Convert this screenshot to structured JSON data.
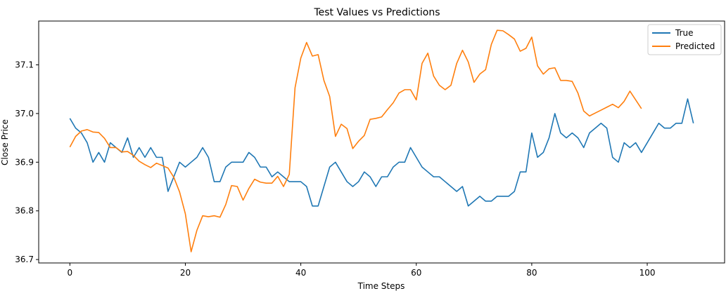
{
  "chart_data": {
    "type": "line",
    "title": "Test Values vs Predictions",
    "xlabel": "Time Steps",
    "ylabel": "Close Price",
    "xlim": [
      -5.4,
      113.4
    ],
    "ylim": [
      36.693,
      37.19
    ],
    "xticks": [
      0,
      20,
      40,
      60,
      80,
      100
    ],
    "yticks": [
      36.7,
      36.8,
      36.9,
      37.0,
      37.1
    ],
    "ytick_labels": [
      "36.7",
      "36.8",
      "36.9",
      "37.0",
      "37.1"
    ],
    "grid": false,
    "legend_position": "top-right",
    "series": [
      {
        "name": "True",
        "color": "#1f77b4",
        "values": [
          36.99,
          36.97,
          36.96,
          36.94,
          36.9,
          36.92,
          36.9,
          36.94,
          36.93,
          36.92,
          36.95,
          36.91,
          36.93,
          36.91,
          36.93,
          36.91,
          36.91,
          36.84,
          36.87,
          36.9,
          36.89,
          36.9,
          36.91,
          36.93,
          36.91,
          36.86,
          36.86,
          36.89,
          36.9,
          36.9,
          36.9,
          36.92,
          36.91,
          36.89,
          36.89,
          36.87,
          36.88,
          36.87,
          36.86,
          36.86,
          36.86,
          36.85,
          36.81,
          36.81,
          36.85,
          36.89,
          36.9,
          36.88,
          36.86,
          36.85,
          36.86,
          36.88,
          36.87,
          36.85,
          36.87,
          36.87,
          36.89,
          36.9,
          36.9,
          36.93,
          36.91,
          36.89,
          36.88,
          36.87,
          36.87,
          36.86,
          36.85,
          36.84,
          36.85,
          36.81,
          36.82,
          36.83,
          36.82,
          36.82,
          36.83,
          36.83,
          36.83,
          36.84,
          36.88,
          36.88,
          36.96,
          36.91,
          36.92,
          36.95,
          37.0,
          36.96,
          36.95,
          36.96,
          36.95,
          36.93,
          36.96,
          36.97,
          36.98,
          36.97,
          36.91,
          36.9,
          36.94,
          36.93,
          36.94,
          36.92,
          36.94,
          36.96,
          36.98,
          36.97,
          36.97,
          36.98,
          36.98,
          37.03,
          36.98
        ]
      },
      {
        "name": "Predicted",
        "color": "#ff7f0e",
        "values": [
          36.931,
          36.953,
          36.964,
          36.967,
          36.962,
          36.961,
          36.949,
          36.93,
          36.93,
          36.921,
          36.922,
          36.914,
          36.902,
          36.895,
          36.889,
          36.898,
          36.893,
          36.888,
          36.869,
          36.839,
          36.794,
          36.716,
          36.76,
          36.79,
          36.788,
          36.79,
          36.787,
          36.813,
          36.852,
          36.85,
          36.822,
          36.846,
          36.865,
          36.859,
          36.857,
          36.857,
          36.871,
          36.85,
          36.875,
          37.053,
          37.114,
          37.146,
          37.118,
          37.121,
          37.068,
          37.035,
          36.953,
          36.978,
          36.969,
          36.928,
          36.943,
          36.955,
          36.988,
          36.99,
          36.993,
          37.008,
          37.022,
          37.042,
          37.049,
          37.049,
          37.028,
          37.103,
          37.124,
          37.077,
          37.058,
          37.049,
          37.058,
          37.103,
          37.13,
          37.106,
          37.064,
          37.081,
          37.09,
          37.142,
          37.171,
          37.17,
          37.162,
          37.153,
          37.128,
          37.134,
          37.157,
          37.098,
          37.081,
          37.092,
          37.094,
          37.068,
          37.068,
          37.066,
          37.042,
          37.005,
          36.995,
          37.001,
          37.007,
          37.013,
          37.019,
          37.012,
          37.025,
          37.046,
          37.028,
          37.01
        ]
      }
    ]
  }
}
